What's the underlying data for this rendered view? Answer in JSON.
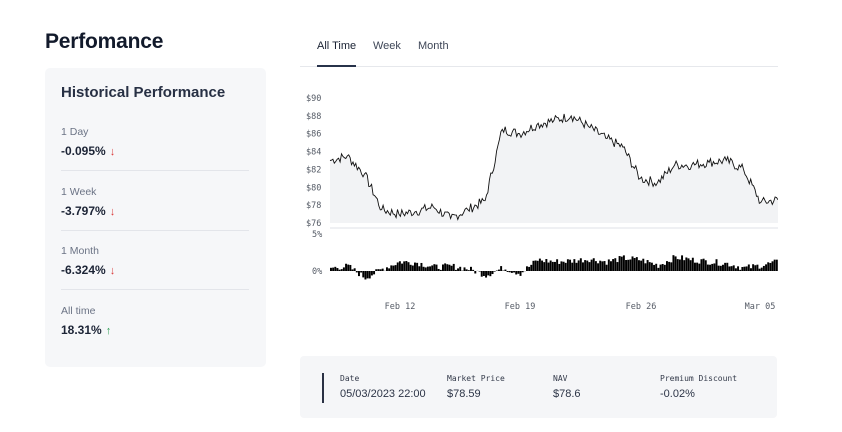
{
  "page": {
    "title": "Perfomance"
  },
  "historical": {
    "title": "Historical Performance",
    "metrics": [
      {
        "label": "1 Day",
        "value": "-0.095%",
        "arrow": "↓",
        "direction": "down"
      },
      {
        "label": "1 Week",
        "value": "-3.797%",
        "arrow": "↓",
        "direction": "down"
      },
      {
        "label": "1 Month",
        "value": "-6.324%",
        "arrow": "↓",
        "direction": "down"
      },
      {
        "label": "All time",
        "value": "18.31%",
        "arrow": "↑",
        "direction": "up"
      }
    ]
  },
  "tabs": [
    {
      "label": "All Time",
      "active": true
    },
    {
      "label": "Week",
      "active": false
    },
    {
      "label": "Month",
      "active": false
    }
  ],
  "info": {
    "date_label": "Date",
    "date_value": "05/03/2023 22:00",
    "price_label": "Market Price",
    "price_value": "$78.59",
    "nav_label": "NAV",
    "nav_value": "$78.6",
    "discount_label": "Premium Discount",
    "discount_value": "-0.02%"
  },
  "colors": {
    "line": "#111111",
    "bars": "#000000",
    "down_arrow": "#d93a3a",
    "up_arrow": "#2f9e55",
    "active_tab": "#27324a"
  },
  "chart_data": [
    {
      "type": "line",
      "title": "",
      "ytick_labels": [
        "$90",
        "$88",
        "$86",
        "$84",
        "$82",
        "$80",
        "$78",
        "$76"
      ],
      "ylim": [
        76,
        90
      ],
      "xlim": [
        "Feb 7",
        "Mar 5"
      ],
      "grid": false,
      "series": [
        {
          "x": [
            "Feb 7",
            "Feb 8",
            "Feb 9",
            "Feb 10",
            "Feb 11",
            "Feb 12",
            "Feb 13",
            "Feb 14",
            "Feb 15",
            "Feb 16",
            "Feb 17",
            "Feb 18",
            "Feb 19",
            "Feb 20",
            "Feb 21",
            "Feb 22",
            "Feb 23",
            "Feb 24",
            "Feb 25",
            "Feb 26",
            "Feb 27",
            "Feb 28",
            "Mar 1",
            "Mar 2",
            "Mar 3",
            "Mar 4",
            "Mar 5"
          ],
          "values": [
            83,
            83.5,
            81.5,
            77.5,
            77,
            77.3,
            77.8,
            76.5,
            77.5,
            78.5,
            86.5,
            86,
            87,
            87.5,
            88,
            86.8,
            85.5,
            84.5,
            81,
            80.5,
            82.5,
            82.5,
            82.8,
            83,
            82,
            78.3,
            78.6
          ]
        }
      ]
    },
    {
      "type": "bar",
      "title": "",
      "ytick_labels": [
        "5%",
        "0%"
      ],
      "ylim": [
        -2,
        5
      ],
      "xtick_labels": [
        "Feb 12",
        "Feb 19",
        "Feb 26",
        "Mar 05"
      ],
      "x": [
        "Feb 7",
        "Feb 8",
        "Feb 9",
        "Feb 10",
        "Feb 11",
        "Feb 12",
        "Feb 13",
        "Feb 14",
        "Feb 15",
        "Feb 16",
        "Feb 17",
        "Feb 18",
        "Feb 19",
        "Feb 20",
        "Feb 21",
        "Feb 22",
        "Feb 23",
        "Feb 24",
        "Feb 25",
        "Feb 26",
        "Feb 27",
        "Feb 28",
        "Mar 1",
        "Mar 2",
        "Mar 3",
        "Mar 4",
        "Mar 5"
      ],
      "values": [
        0.3,
        0.5,
        -0.8,
        0.2,
        1.0,
        0.9,
        0.4,
        0.5,
        0.2,
        -0.5,
        0.3,
        -0.3,
        1.2,
        1.0,
        1.1,
        1.3,
        1.0,
        1.4,
        1.2,
        0.6,
        1.5,
        1.2,
        1.0,
        0.8,
        0.3,
        0.6,
        1.0
      ]
    }
  ]
}
